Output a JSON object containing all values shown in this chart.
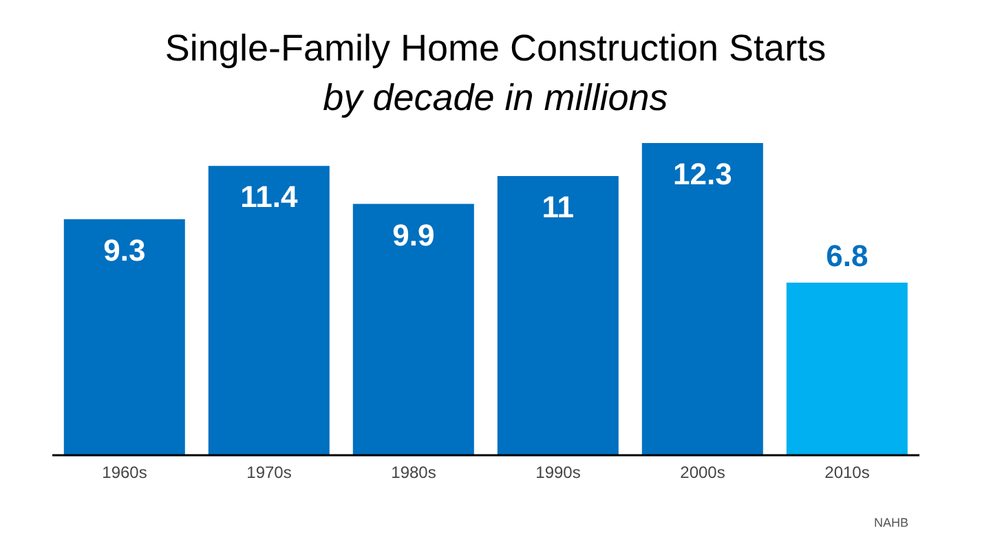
{
  "chart_data": {
    "type": "bar",
    "title": "Single-Family Home Construction Starts",
    "subtitle": "by decade in millions",
    "categories": [
      "1960s",
      "1970s",
      "1980s",
      "1990s",
      "2000s",
      "2010s"
    ],
    "values": [
      9.3,
      11.4,
      9.9,
      11,
      12.3,
      6.8
    ],
    "colors": [
      "#0070c0",
      "#0070c0",
      "#0070c0",
      "#0070c0",
      "#0070c0",
      "#00b0f0"
    ],
    "data_labels": true,
    "grid": false,
    "tick_labels": "x",
    "annotations": [
      "NAHB"
    ]
  }
}
